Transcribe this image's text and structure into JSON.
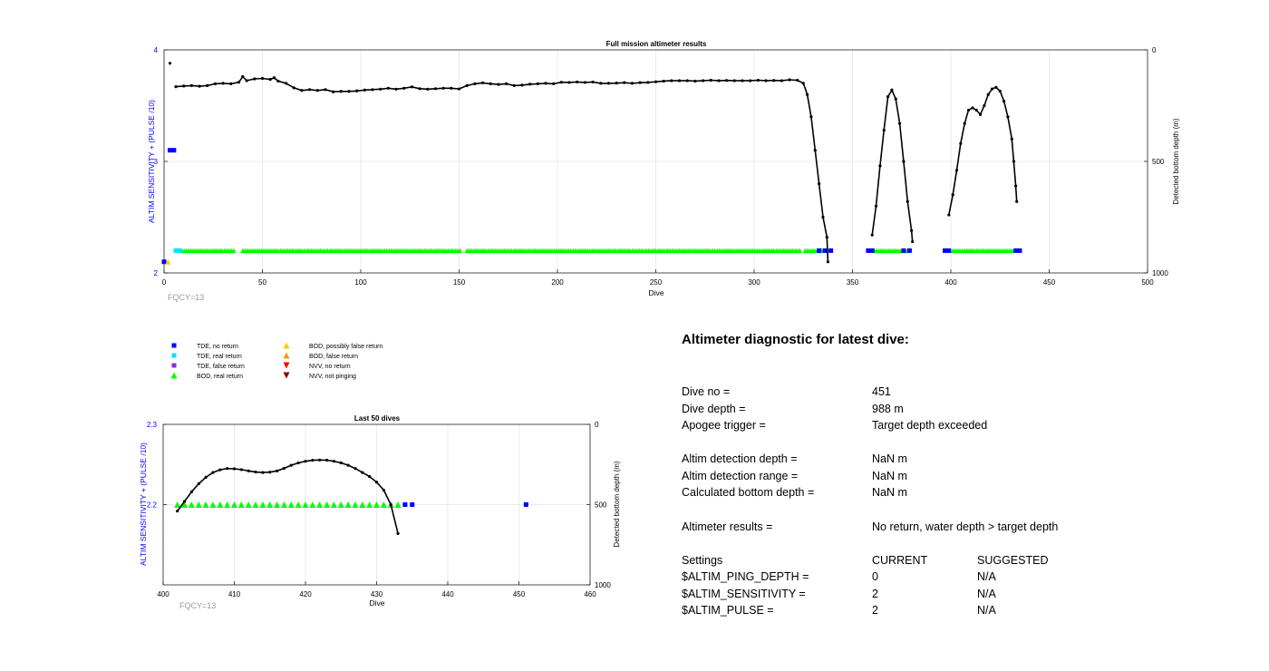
{
  "colors": {
    "tde_no_return": "#0000ff",
    "tde_real_return": "#00e5ff",
    "tde_false_return": "#8a2be2",
    "bod_real_return": "#00ff00",
    "bod_possibly_false": "#ffcc00",
    "bod_false_return": "#ff9900",
    "nvv_no_return": "#ff0000",
    "nvv_not_pinging": "#8b0000",
    "axis_blue": "#0000ff",
    "bottom_line": "#000000"
  },
  "fqcy_label_top": "FQCY=13",
  "fqcy_label_bottom": "FQCY=13",
  "legend": [
    {
      "label": "TDE, no return",
      "marker": "square",
      "color": "#0000ff"
    },
    {
      "label": "TDE, real return",
      "marker": "square",
      "color": "#00e5ff"
    },
    {
      "label": "TDE, false return",
      "marker": "square",
      "color": "#8a2be2"
    },
    {
      "label": "BOD, real return",
      "marker": "triangle-up",
      "color": "#00ff00"
    },
    {
      "label": "BOD, possibly false return",
      "marker": "triangle-up",
      "color": "#ffcc00"
    },
    {
      "label": "BOD, false return",
      "marker": "triangle-up",
      "color": "#ff9900"
    },
    {
      "label": "NVV, no return",
      "marker": "triangle-down",
      "color": "#ff0000"
    },
    {
      "label": "NVV, not pinging",
      "marker": "triangle-down",
      "color": "#8b0000"
    }
  ],
  "diagnostic": {
    "title": "Altimeter diagnostic for latest dive:",
    "rows": [
      {
        "label": "Dive no =",
        "value": "451"
      },
      {
        "label": "Dive depth =",
        "value": "988 m"
      },
      {
        "label": "Apogee trigger =",
        "value": "Target depth exceeded"
      },
      {
        "label": "Altim detection depth =",
        "value": "NaN m"
      },
      {
        "label": "Altim detection range =",
        "value": "NaN m"
      },
      {
        "label": "Calculated bottom depth =",
        "value": "NaN m"
      },
      {
        "label": "Altimeter results =",
        "value": "No return, water depth > target depth"
      }
    ],
    "settings_header": {
      "label": "Settings",
      "current": "CURRENT",
      "suggested": "SUGGESTED"
    },
    "settings": [
      {
        "name": "$ALTIM_PING_DEPTH =",
        "current": "0",
        "suggested": "N/A"
      },
      {
        "name": "$ALTIM_SENSITIVITY =",
        "current": "2",
        "suggested": "N/A"
      },
      {
        "name": "$ALTIM_PULSE =",
        "current": "2",
        "suggested": "N/A"
      }
    ]
  },
  "chart_data": [
    {
      "type": "scatter",
      "title": "Full mission altimeter results",
      "xlabel": "Dive",
      "ylabel": "ALTIM SENSITIVITY + (PULSE /10)",
      "y2label": "Detected bottom depth (m)",
      "xlim": [
        0,
        500
      ],
      "ylim": [
        2,
        4
      ],
      "y2lim": [
        0,
        1000
      ],
      "y2_reversed": true,
      "xticks": [
        0,
        50,
        100,
        150,
        200,
        250,
        300,
        350,
        400,
        450,
        500
      ],
      "yticks": [
        2,
        3,
        4
      ],
      "y2ticks": [
        0,
        500,
        1000
      ],
      "grid": true,
      "bottom_depth_segments": [
        [
          [
            3,
            60
          ],
          [
            6,
            165
          ],
          [
            10,
            162
          ],
          [
            14,
            160
          ],
          [
            18,
            163
          ],
          [
            22,
            160
          ],
          [
            26,
            152
          ],
          [
            30,
            150
          ],
          [
            34,
            152
          ],
          [
            38,
            145
          ],
          [
            40,
            120
          ],
          [
            42,
            138
          ],
          [
            46,
            130
          ],
          [
            50,
            128
          ],
          [
            54,
            132
          ],
          [
            56,
            125
          ],
          [
            58,
            140
          ],
          [
            62,
            150
          ],
          [
            66,
            170
          ],
          [
            70,
            182
          ],
          [
            74,
            178
          ],
          [
            78,
            182
          ],
          [
            82,
            178
          ],
          [
            86,
            188
          ],
          [
            90,
            186
          ],
          [
            94,
            186
          ],
          [
            98,
            184
          ],
          [
            102,
            180
          ],
          [
            106,
            178
          ],
          [
            110,
            176
          ],
          [
            114,
            172
          ],
          [
            118,
            176
          ],
          [
            122,
            172
          ],
          [
            126,
            166
          ],
          [
            130,
            174
          ],
          [
            134,
            176
          ],
          [
            138,
            174
          ],
          [
            142,
            172
          ],
          [
            146,
            172
          ],
          [
            150,
            175
          ],
          [
            154,
            160
          ],
          [
            158,
            152
          ],
          [
            162,
            148
          ],
          [
            166,
            152
          ],
          [
            170,
            155
          ],
          [
            174,
            152
          ],
          [
            178,
            160
          ],
          [
            182,
            158
          ],
          [
            186,
            154
          ],
          [
            190,
            152
          ],
          [
            194,
            150
          ],
          [
            198,
            152
          ],
          [
            202,
            145
          ],
          [
            206,
            146
          ],
          [
            210,
            144
          ],
          [
            214,
            146
          ],
          [
            218,
            144
          ],
          [
            222,
            150
          ],
          [
            226,
            150
          ],
          [
            230,
            149
          ],
          [
            234,
            147
          ],
          [
            238,
            150
          ],
          [
            242,
            147
          ],
          [
            246,
            146
          ],
          [
            250,
            143
          ],
          [
            254,
            140
          ],
          [
            258,
            138
          ],
          [
            262,
            138
          ],
          [
            266,
            138
          ],
          [
            270,
            140
          ],
          [
            274,
            138
          ],
          [
            278,
            136
          ],
          [
            282,
            138
          ],
          [
            286,
            137
          ],
          [
            290,
            138
          ],
          [
            294,
            138
          ],
          [
            298,
            138
          ],
          [
            302,
            136
          ],
          [
            306,
            138
          ],
          [
            310,
            137
          ],
          [
            314,
            138
          ],
          [
            318,
            134
          ],
          [
            322,
            136
          ],
          [
            325,
            150
          ],
          [
            327,
            200
          ],
          [
            329,
            300
          ],
          [
            331,
            450
          ],
          [
            333,
            600
          ],
          [
            335,
            750
          ],
          [
            337,
            840
          ],
          [
            337.5,
            950
          ]
        ],
        [
          [
            360,
            830
          ],
          [
            362,
            700
          ],
          [
            364,
            520
          ],
          [
            366,
            360
          ],
          [
            368,
            210
          ],
          [
            370,
            180
          ],
          [
            372,
            220
          ],
          [
            374,
            330
          ],
          [
            376,
            500
          ],
          [
            378,
            680
          ],
          [
            380,
            810
          ],
          [
            380.5,
            860
          ]
        ],
        [
          [
            399,
            740
          ],
          [
            401,
            650
          ],
          [
            403,
            540
          ],
          [
            405,
            420
          ],
          [
            407,
            330
          ],
          [
            409,
            270
          ],
          [
            411,
            260
          ],
          [
            413,
            270
          ],
          [
            415,
            290
          ],
          [
            417,
            250
          ],
          [
            419,
            200
          ],
          [
            421,
            175
          ],
          [
            423,
            168
          ],
          [
            425,
            185
          ],
          [
            427,
            230
          ],
          [
            429,
            300
          ],
          [
            431,
            400
          ],
          [
            432,
            500
          ],
          [
            433,
            610
          ],
          [
            433.5,
            680
          ]
        ]
      ],
      "bottom_depth_outlier": {
        "x": 3,
        "y2": 60
      },
      "markers_tde_no_return": [
        {
          "x": 3,
          "y": 3.1
        },
        {
          "x": 5,
          "y": 3.1
        },
        {
          "x": 0,
          "y": 2.1
        },
        {
          "x": 333,
          "y": 2.2
        },
        {
          "x": 336,
          "y": 2.2
        },
        {
          "x": 339,
          "y": 2.2
        },
        {
          "x": 358,
          "y": 2.2
        },
        {
          "x": 360,
          "y": 2.2
        },
        {
          "x": 376,
          "y": 2.2
        },
        {
          "x": 379,
          "y": 2.2
        },
        {
          "x": 397,
          "y": 2.2
        },
        {
          "x": 399,
          "y": 2.2
        },
        {
          "x": 433,
          "y": 2.2
        },
        {
          "x": 435,
          "y": 2.2
        }
      ],
      "markers_tde_real_return": [
        {
          "x": 6,
          "y": 2.2
        },
        {
          "x": 8,
          "y": 2.2
        }
      ],
      "markers_bod_possibly_false": [
        {
          "x": 2,
          "y": 2.1
        }
      ],
      "bod_real_return_ranges": [
        [
          9,
          36
        ],
        [
          40,
          151
        ],
        [
          154,
          324
        ],
        [
          326,
          335
        ],
        [
          361,
          378
        ],
        [
          401,
          432
        ]
      ],
      "bod_real_return_y": 2.2
    },
    {
      "type": "scatter",
      "title": "Last 50 dives",
      "xlabel": "Dive",
      "ylabel": "ALTIM SENSITIVITY + (PULSE /10)",
      "y2label": "Detected bottom depth (m)",
      "xlim": [
        400,
        460
      ],
      "ylim": [
        2.1,
        2.3
      ],
      "y2lim": [
        0,
        1000
      ],
      "y2_reversed": true,
      "xticks": [
        400,
        410,
        420,
        430,
        440,
        450,
        460
      ],
      "yticks": [
        2.2,
        2.3
      ],
      "y2ticks": [
        0,
        500,
        1000
      ],
      "grid": true,
      "bottom_depth": [
        [
          402,
          540
        ],
        [
          403,
          480
        ],
        [
          404,
          420
        ],
        [
          405,
          370
        ],
        [
          406,
          330
        ],
        [
          407,
          300
        ],
        [
          408,
          283
        ],
        [
          409,
          275
        ],
        [
          410,
          277
        ],
        [
          411,
          282
        ],
        [
          412,
          290
        ],
        [
          413,
          297
        ],
        [
          414,
          300
        ],
        [
          415,
          298
        ],
        [
          416,
          290
        ],
        [
          417,
          274
        ],
        [
          418,
          255
        ],
        [
          419,
          240
        ],
        [
          420,
          230
        ],
        [
          421,
          224
        ],
        [
          422,
          222
        ],
        [
          423,
          223
        ],
        [
          424,
          230
        ],
        [
          425,
          240
        ],
        [
          426,
          255
        ],
        [
          427,
          275
        ],
        [
          428,
          300
        ],
        [
          429,
          325
        ],
        [
          430,
          360
        ],
        [
          431,
          410
        ],
        [
          432,
          500
        ],
        [
          433,
          680
        ]
      ],
      "bod_real_return_range": [
        402,
        433
      ],
      "bod_real_return_y": 2.2,
      "markers_tde_no_return": [
        {
          "x": 434,
          "y": 2.2
        },
        {
          "x": 435,
          "y": 2.2
        },
        {
          "x": 451,
          "y": 2.2
        }
      ]
    }
  ]
}
